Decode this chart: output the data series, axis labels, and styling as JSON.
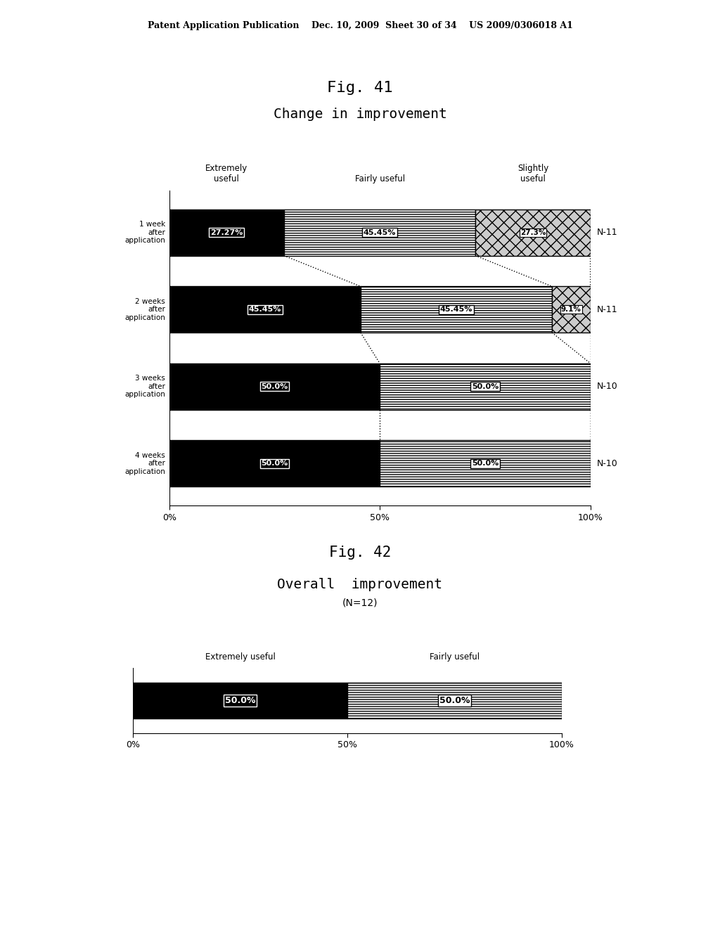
{
  "header_text": "Patent Application Publication    Dec. 10, 2009  Sheet 30 of 34    US 2009/0306018 A1",
  "fig41_title": "Fig. 41",
  "fig41_subtitle": "Change in improvement",
  "fig42_title": "Fig. 42",
  "fig42_subtitle": "Overall  improvement",
  "fig42_subtitle2": "(N=12)",
  "fig41_rows": [
    {
      "label": "1 week\nafter\napplication",
      "n_label": "N-11",
      "extremely_useful": 27.27,
      "fairly_useful": 45.45,
      "slightly_useful": 27.27
    },
    {
      "label": "2 weeks\nafter\napplication",
      "n_label": "N-11",
      "extremely_useful": 45.45,
      "fairly_useful": 45.45,
      "slightly_useful": 9.1
    },
    {
      "label": "3 weeks\nafter\napplication",
      "n_label": "N-10",
      "extremely_useful": 50.0,
      "fairly_useful": 50.0,
      "slightly_useful": 0.0
    },
    {
      "label": "4 weeks\nafter\napplication",
      "n_label": "N-10",
      "extremely_useful": 50.0,
      "fairly_useful": 50.0,
      "slightly_useful": 0.0
    }
  ],
  "fig42_row": {
    "extremely_useful": 50.0,
    "fairly_useful": 50.0
  },
  "col_headers_41": {
    "extremely_useful": "Extremely\nuseful",
    "fairly_useful": "Fairly useful",
    "slightly_useful": "Slightly\nuseful"
  },
  "col_headers_42": {
    "extremely_useful": "Extremely useful",
    "fairly_useful": "Fairly useful"
  },
  "background_color": "#ffffff",
  "bar_height": 0.6
}
